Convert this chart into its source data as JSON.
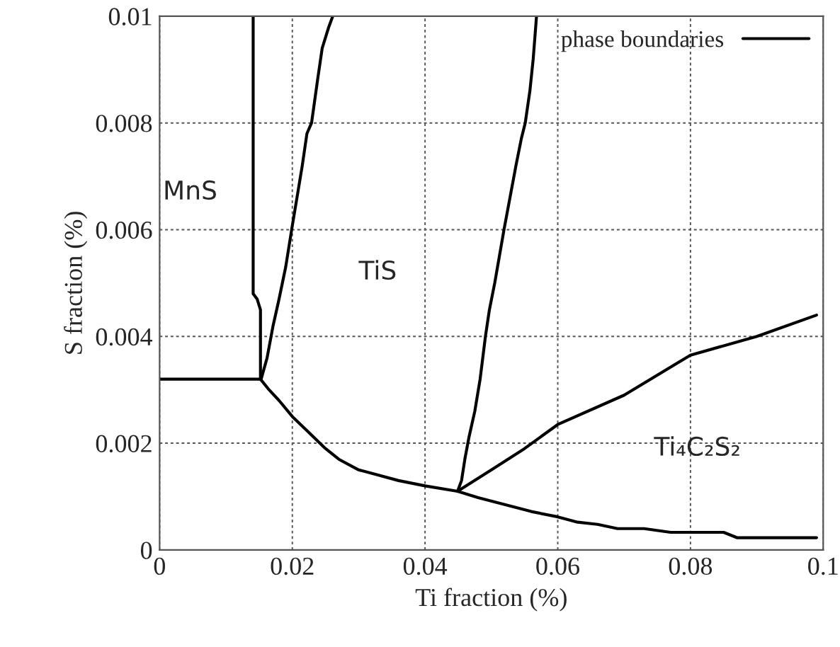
{
  "chart_data": {
    "type": "line",
    "xlabel": "Ti fraction (%)",
    "ylabel": "S fraction (%)",
    "xlim": [
      0,
      0.1
    ],
    "ylim": [
      0,
      0.01
    ],
    "xticks": [
      0,
      0.02,
      0.04,
      0.06,
      0.08,
      0.1
    ],
    "yticks": [
      0,
      0.002,
      0.004,
      0.006,
      0.008,
      0.01
    ],
    "grid": true,
    "legend": "top right",
    "marker": "none",
    "line_style": "solid",
    "series": [
      {
        "name": "phase boundaries",
        "color": "#000000",
        "x": [
          0.0141,
          0.0141,
          0.0147,
          0.0152,
          0.0152
        ],
        "values": [
          0.01,
          0.0048,
          0.0047,
          0.0045,
          0.0032
        ]
      },
      {
        "color": "#000000",
        "x": [
          0,
          0.0152
        ],
        "values": [
          0.0032,
          0.0032
        ]
      },
      {
        "color": "#000000",
        "x": [
          0.0153,
          0.0162,
          0.0171,
          0.018,
          0.019,
          0.0199,
          0.0207,
          0.0215,
          0.0222,
          0.0229,
          0.0238,
          0.0245,
          0.0255,
          0.0261
        ],
        "values": [
          0.0032,
          0.0036,
          0.0042,
          0.0047,
          0.0053,
          0.006,
          0.0066,
          0.0072,
          0.0078,
          0.008,
          0.0088,
          0.0094,
          0.0098,
          0.01
        ]
      },
      {
        "color": "#000000",
        "x": [
          0.0152,
          0.0165,
          0.018,
          0.02,
          0.0225,
          0.025,
          0.027,
          0.03,
          0.033,
          0.036,
          0.04,
          0.0449,
          0.048,
          0.052,
          0.056,
          0.06,
          0.063,
          0.066,
          0.069,
          0.073,
          0.077,
          0.08,
          0.085,
          0.087,
          0.099
        ],
        "values": [
          0.0032,
          0.003,
          0.0028,
          0.0025,
          0.0022,
          0.0019,
          0.0017,
          0.0015,
          0.0014,
          0.0013,
          0.0012,
          0.0011,
          0.00098,
          0.00085,
          0.00072,
          0.00062,
          0.00052,
          0.00048,
          0.0004,
          0.0004,
          0.00033,
          0.00033,
          0.00033,
          0.00023,
          0.00023
        ]
      },
      {
        "color": "#000000",
        "x": [
          0.0449,
          0.0455,
          0.046,
          0.0466,
          0.0475,
          0.0483,
          0.0491,
          0.0497,
          0.0505,
          0.0512,
          0.0519,
          0.0528,
          0.0537,
          0.0545,
          0.0551,
          0.0558,
          0.0563,
          0.0568
        ],
        "values": [
          0.0011,
          0.0013,
          0.0017,
          0.0021,
          0.0026,
          0.0032,
          0.004,
          0.0045,
          0.005,
          0.0055,
          0.006,
          0.0066,
          0.0072,
          0.0077,
          0.008,
          0.0086,
          0.0092,
          0.01
        ]
      },
      {
        "color": "#000000",
        "x": [
          0.0449,
          0.05,
          0.055,
          0.06,
          0.07,
          0.08,
          0.09,
          0.099
        ],
        "values": [
          0.0011,
          0.0015,
          0.0019,
          0.00235,
          0.0029,
          0.00365,
          0.004,
          0.0044
        ]
      }
    ],
    "annotations": [
      "MnS",
      "TiS",
      "Ti₄C₂S₂"
    ]
  }
}
